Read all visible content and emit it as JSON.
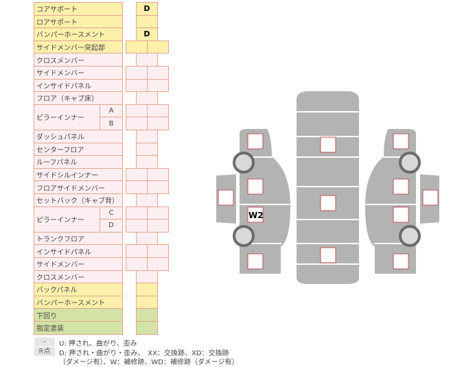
{
  "table": {
    "rows": [
      {
        "label": "コアサポート",
        "color": "y",
        "cols": 1,
        "values": [
          "D"
        ]
      },
      {
        "label": "ロアサポート",
        "color": "y",
        "cols": 1,
        "values": [
          ""
        ]
      },
      {
        "label": "バンパーホースメント",
        "color": "y",
        "cols": 1,
        "values": [
          "D"
        ]
      },
      {
        "label": "サイドメンバー突起部",
        "color": "y",
        "cols": 2,
        "values": [
          "",
          ""
        ]
      },
      {
        "label": "クロスメンバー",
        "color": "p",
        "cols": 1,
        "values": [
          ""
        ]
      },
      {
        "label": "サイドメンバー",
        "color": "p",
        "cols": 2,
        "values": [
          "",
          ""
        ]
      },
      {
        "label": "インサイドパネル",
        "color": "p",
        "cols": 2,
        "values": [
          "",
          ""
        ]
      },
      {
        "label": "フロア（キャブ床）",
        "color": "p",
        "cols": 1,
        "values": [
          ""
        ]
      },
      {
        "label": "ピラーインナー",
        "sub": "A",
        "color": "p",
        "cols": 2,
        "values": [
          "",
          ""
        ]
      },
      {
        "label": "",
        "sub": "B",
        "color": "p",
        "cols": 2,
        "values": [
          "",
          ""
        ]
      },
      {
        "label": "ダッシュパネル",
        "color": "p",
        "cols": 1,
        "values": [
          ""
        ]
      },
      {
        "label": "センターフロア",
        "color": "p",
        "cols": 1,
        "values": [
          ""
        ]
      },
      {
        "label": "ルーフパネル",
        "color": "p",
        "cols": 1,
        "values": [
          ""
        ]
      },
      {
        "label": "サイドシルインナー",
        "color": "p",
        "cols": 2,
        "values": [
          "",
          ""
        ]
      },
      {
        "label": "フロアサイドメンバー",
        "color": "p",
        "cols": 2,
        "values": [
          "",
          ""
        ]
      },
      {
        "label": "セットバック（キャブ背）",
        "color": "p",
        "cols": 1,
        "values": [
          ""
        ]
      },
      {
        "label": "ピラーインナー",
        "sub": "C",
        "color": "p",
        "cols": 2,
        "values": [
          "",
          ""
        ]
      },
      {
        "label": "",
        "sub": "D",
        "color": "p",
        "cols": 2,
        "values": [
          "",
          ""
        ]
      },
      {
        "label": "トランクフロア",
        "color": "p",
        "cols": 1,
        "values": [
          ""
        ]
      },
      {
        "label": "インサイドパネル",
        "color": "p",
        "cols": 2,
        "values": [
          "",
          ""
        ]
      },
      {
        "label": "サイドメンバー",
        "color": "p",
        "cols": 2,
        "values": [
          "",
          ""
        ]
      },
      {
        "label": "クロスメンバー",
        "color": "p",
        "cols": 1,
        "values": [
          ""
        ]
      },
      {
        "label": "バックパネル",
        "color": "y",
        "cols": 1,
        "values": [
          ""
        ]
      },
      {
        "label": "バンパーホースメント",
        "color": "y",
        "cols": 1,
        "values": [
          ""
        ]
      },
      {
        "label": "下回り",
        "color": "g",
        "cols": 1,
        "values": [
          ""
        ]
      },
      {
        "label": "指定塗装",
        "color": "g",
        "cols": 1,
        "values": [
          ""
        ]
      }
    ]
  },
  "legend": {
    "dash": "-",
    "dash_text": "U: 押され、曲がり、歪み",
    "r": "R点",
    "r_text1": "D: 押され・曲がり・歪み、　XX：交換跡、XD：交換跡",
    "r_text2": "（ダメージ有）、W：補修跡、WD：補修跡（ダメージ有）"
  },
  "diagram": {
    "w2_label": "W2",
    "colors": {
      "body": "#b3b3b3",
      "marker_border": "#c0504d"
    }
  }
}
